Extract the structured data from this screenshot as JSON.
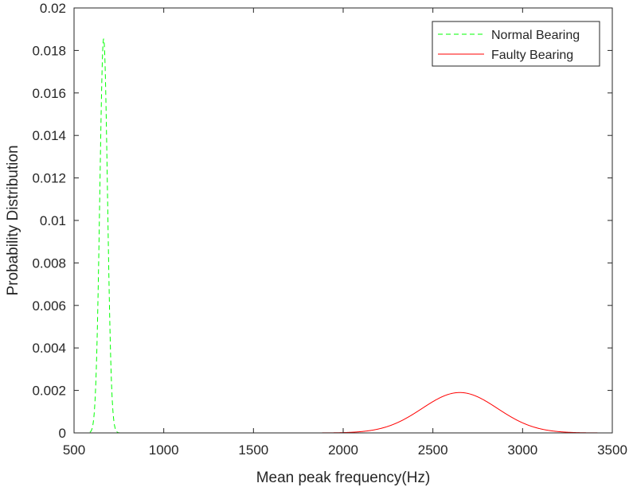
{
  "chart_data": {
    "type": "line",
    "title": "",
    "xlabel": "Mean peak frequency(Hz)",
    "ylabel": "Probability Distribution",
    "xlim": [
      500,
      3500
    ],
    "ylim": [
      0,
      0.02
    ],
    "xticks": [
      500,
      1000,
      1500,
      2000,
      2500,
      3000,
      3500
    ],
    "xtick_labels": [
      "500",
      "1000",
      "1500",
      "2000",
      "2500",
      "3000",
      "3500"
    ],
    "yticks": [
      0,
      0.002,
      0.004,
      0.006,
      0.008,
      0.01,
      0.012,
      0.014,
      0.016,
      0.018,
      0.02
    ],
    "ytick_labels": [
      "0",
      "0.002",
      "0.004",
      "0.006",
      "0.008",
      "0.01",
      "0.012",
      "0.014",
      "0.016",
      "0.018",
      "0.02"
    ],
    "grid": false,
    "legend_position": "top-right",
    "series": [
      {
        "name": "Normal Bearing",
        "color": "#00ff00",
        "line_style": "dashed",
        "distribution": "normal",
        "mean": 665,
        "std": 21.5
      },
      {
        "name": "Faulty Bearing",
        "color": "#ff0000",
        "line_style": "solid",
        "distribution": "normal",
        "mean": 2650,
        "std": 210
      }
    ]
  }
}
